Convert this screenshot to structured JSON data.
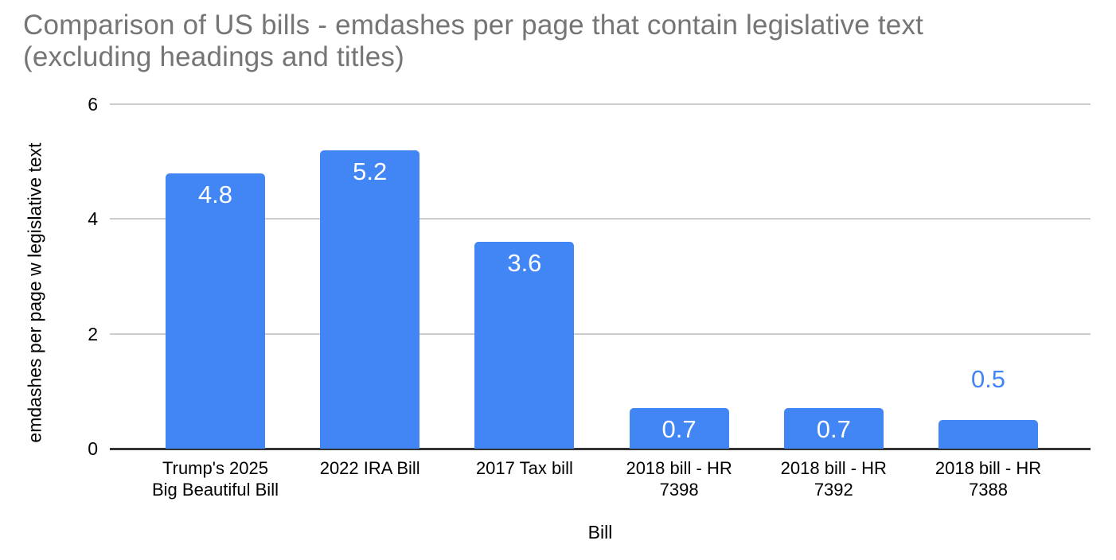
{
  "chart_data": {
    "type": "bar",
    "title": "Comparison of US bills - emdashes per page that contain legislative text\n(excluding headings and titles)",
    "categories": [
      "Trump's 2025\nBig Beautiful Bill",
      "2022 IRA Bill",
      "2017 Tax bill",
      "2018 bill - HR\n7398",
      "2018 bill - HR\n7392",
      "2018 bill - HR\n7388"
    ],
    "values": [
      4.8,
      5.2,
      3.6,
      0.7,
      0.7,
      0.5
    ],
    "value_labels": [
      "4.8",
      "5.2",
      "3.6",
      "0.7",
      "0.7",
      "0.5"
    ],
    "value_label_placement": [
      "inside",
      "inside",
      "inside",
      "inside",
      "inside",
      "above"
    ],
    "xlabel": "Bill",
    "ylabel": "emdashes per page w legislative text",
    "ylim": [
      0,
      6
    ],
    "yticks": [
      0,
      2,
      4,
      6
    ],
    "grid": true,
    "legend": "none",
    "colors": {
      "bar": "#4285f4",
      "value_label_inside": "#ffffff",
      "value_label_above": "#4285f4",
      "title_text": "#757575",
      "axis_text": "#000000",
      "gridline": "#cccccc",
      "axis_line": "#333333"
    }
  }
}
